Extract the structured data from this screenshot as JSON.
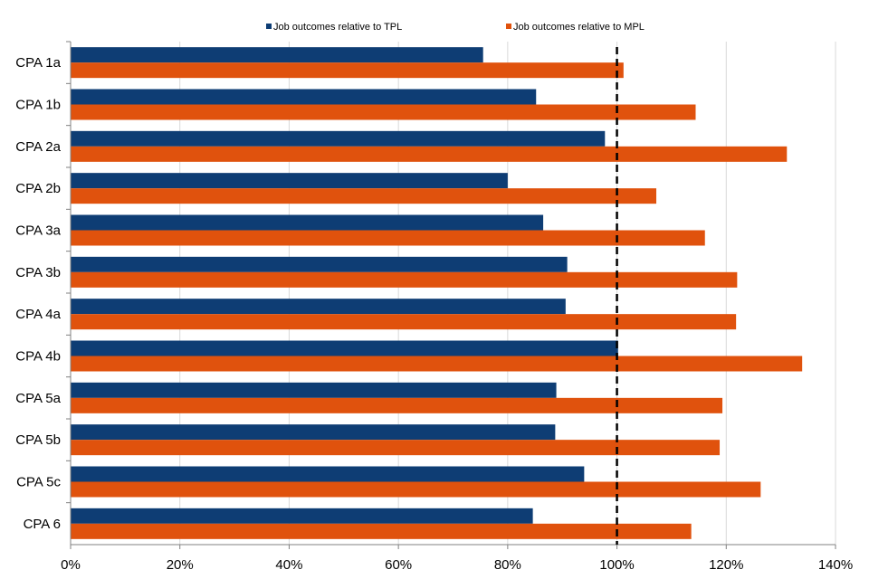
{
  "chart_data": {
    "type": "bar",
    "orientation": "horizontal",
    "categories": [
      "CPA 1a",
      "CPA 1b",
      "CPA 2a",
      "CPA 2b",
      "CPA 3a",
      "CPA 3b",
      "CPA 4a",
      "CPA 4b",
      "CPA 5a",
      "CPA 5b",
      "CPA 5c",
      "CPA 6"
    ],
    "series": [
      {
        "name": "Job outcomes relative to TPL",
        "color": "#0E3D74",
        "values": [
          75.5,
          85.2,
          97.8,
          80.0,
          86.5,
          90.9,
          90.6,
          100.2,
          88.9,
          88.7,
          94.0,
          84.6
        ]
      },
      {
        "name": "Job outcomes relative to MPL",
        "color": "#E0520D",
        "values": [
          101.2,
          114.4,
          131.1,
          107.2,
          116.1,
          122.0,
          121.8,
          133.9,
          119.3,
          118.8,
          126.3,
          113.6
        ]
      }
    ],
    "xlim": [
      0,
      140
    ],
    "x_ticks": [
      "0%",
      "20%",
      "40%",
      "60%",
      "80%",
      "100%",
      "120%",
      "140%"
    ],
    "reference_line": {
      "value": 100,
      "style": "dashed",
      "color": "#000000"
    },
    "grid": "vertical",
    "legend": "top"
  }
}
